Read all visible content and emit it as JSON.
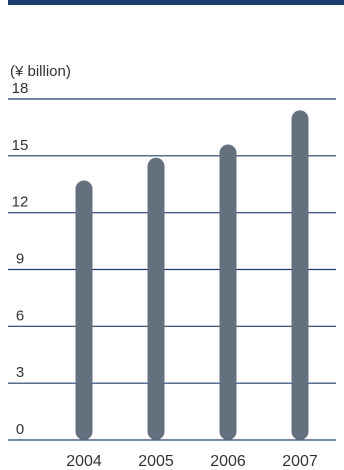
{
  "chart_data": {
    "type": "bar",
    "unit_label": "(¥ billion)",
    "categories": [
      "2004",
      "2005",
      "2006",
      "2007"
    ],
    "values": [
      13.7,
      14.9,
      15.6,
      17.4
    ],
    "ylim": [
      0,
      18
    ],
    "yticks": [
      0,
      3,
      6,
      9,
      12,
      15,
      18
    ],
    "grid": true,
    "legend": "none",
    "colors": {
      "bar": "#65707f",
      "gridline": "#1f3d6e",
      "header_bar": "#1f3d6e",
      "text": "#333333"
    }
  }
}
